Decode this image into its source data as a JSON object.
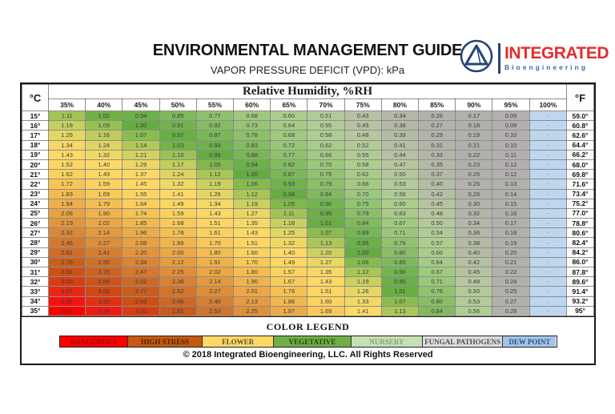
{
  "header": {
    "title": "ENVIRONMENTAL MANAGEMENT GUIDE",
    "subtitle": "VAPOR PRESSURE DEFICIT (VPD): kPa",
    "logo": {
      "name": "INTEGRATED",
      "sub": "Bioengineering",
      "name_color": "#E22D2D",
      "sub_color": "#3A67AE",
      "mark_color": "#24427B"
    }
  },
  "chart_data": {
    "type": "heatmap",
    "title": "Relative Humidity, %RH",
    "unit_left": "°C",
    "unit_right": "°F",
    "x_categories": [
      "35%",
      "40%",
      "45%",
      "50%",
      "55%",
      "60%",
      "65%",
      "70%",
      "75%",
      "80%",
      "85%",
      "90%",
      "95%",
      "100%"
    ],
    "dew_point_placeholder": "-",
    "dew_point_color": "#BDD7EE",
    "dew_point_text_color": "#6C87A8",
    "rows": [
      {
        "c": "15°",
        "f": "59.0°",
        "values": [
          "1.11",
          "1.02",
          "0.94",
          "0.85",
          "0.77",
          "0.68",
          "0.60",
          "0.51",
          "0.43",
          "0.34",
          "0.26",
          "0.17",
          "0.09"
        ]
      },
      {
        "c": "16°",
        "f": "60.8°",
        "values": [
          "1.18",
          "1.09",
          "1.00",
          "0.91",
          "0.82",
          "0.73",
          "0.64",
          "0.55",
          "0.45",
          "0.36",
          "0.27",
          "0.18",
          "0.09"
        ]
      },
      {
        "c": "17°",
        "f": "62.6°",
        "values": [
          "1.26",
          "1.16",
          "1.07",
          "0.97",
          "0.87",
          "0.78",
          "0.68",
          "0.58",
          "0.48",
          "0.39",
          "0.29",
          "0.19",
          "0.10"
        ]
      },
      {
        "c": "18°",
        "f": "64.4°",
        "values": [
          "1.34",
          "1.24",
          "1.14",
          "1.03",
          "0.93",
          "0.83",
          "0.72",
          "0.62",
          "0.52",
          "0.41",
          "0.31",
          "0.21",
          "0.10"
        ]
      },
      {
        "c": "19°",
        "f": "66.2°",
        "values": [
          "1.43",
          "1.32",
          "1.21",
          "1.10",
          "0.99",
          "0.88",
          "0.77",
          "0.66",
          "0.55",
          "0.44",
          "0.33",
          "0.22",
          "0.11"
        ]
      },
      {
        "c": "20°",
        "f": "68.0°",
        "values": [
          "1.52",
          "1.40",
          "1.29",
          "1.17",
          "1.05",
          "0.94",
          "0.82",
          "0.70",
          "0.58",
          "0.47",
          "0.35",
          "0.23",
          "0.12"
        ]
      },
      {
        "c": "21°",
        "f": "69.8°",
        "values": [
          "1.62",
          "1.49",
          "1.37",
          "1.24",
          "1.12",
          "1.00",
          "0.87",
          "0.75",
          "0.62",
          "0.50",
          "0.37",
          "0.25",
          "0.12"
        ]
      },
      {
        "c": "22°",
        "f": "71.6°",
        "values": [
          "1.72",
          "1.59",
          "1.45",
          "1.32",
          "1.19",
          "1.06",
          "0.93",
          "0.79",
          "0.66",
          "0.53",
          "0.40",
          "0.26",
          "0.13"
        ]
      },
      {
        "c": "23°",
        "f": "73.4°",
        "values": [
          "1.83",
          "1.69",
          "1.55",
          "1.41",
          "1.26",
          "1.12",
          "0.98",
          "0.84",
          "0.70",
          "0.56",
          "0.42",
          "0.28",
          "0.14"
        ]
      },
      {
        "c": "24°",
        "f": "75.2°",
        "values": [
          "1.94",
          "1.79",
          "1.64",
          "1.49",
          "1.34",
          "1.19",
          "1.05",
          "0.90",
          "0.75",
          "0.60",
          "0.45",
          "0.30",
          "0.15"
        ]
      },
      {
        "c": "25°",
        "f": "77.0°",
        "values": [
          "2.06",
          "1.90",
          "1.74",
          "1.59",
          "1.43",
          "1.27",
          "1.11",
          "0.95",
          "0.79",
          "0.63",
          "0.48",
          "0.32",
          "0.16"
        ]
      },
      {
        "c": "26°",
        "f": "78.8°",
        "values": [
          "2.19",
          "2.02",
          "1.85",
          "1.68",
          "1.51",
          "1.35",
          "1.18",
          "1.01",
          "0.84",
          "0.67",
          "0.50",
          "0.34",
          "0.17"
        ]
      },
      {
        "c": "27°",
        "f": "80.6°",
        "values": [
          "2.32",
          "2.14",
          "1.96",
          "1.78",
          "1.61",
          "1.43",
          "1.25",
          "1.07",
          "0.89",
          "0.71",
          "0.54",
          "0.36",
          "0.18"
        ]
      },
      {
        "c": "28°",
        "f": "82.4°",
        "values": [
          "2.46",
          "2.27",
          "2.08",
          "1.89",
          "1.70",
          "1.51",
          "1.32",
          "1.13",
          "0.95",
          "0.76",
          "0.57",
          "0.38",
          "0.19"
        ]
      },
      {
        "c": "29°",
        "f": "84.2°",
        "values": [
          "2.61",
          "2.41",
          "2.20",
          "2.00",
          "1.80",
          "1.60",
          "1.40",
          "1.20",
          "1.00",
          "0.80",
          "0.60",
          "0.40",
          "0.20"
        ]
      },
      {
        "c": "30°",
        "f": "86.0°",
        "values": [
          "2.76",
          "2.55",
          "2.34",
          "2.12",
          "1.91",
          "1.70",
          "1.49",
          "1.27",
          "1.06",
          "0.85",
          "0.64",
          "0.42",
          "0.21"
        ]
      },
      {
        "c": "31°",
        "f": "87.8°",
        "values": [
          "2.92",
          "2.70",
          "2.47",
          "2.25",
          "2.02",
          "1.80",
          "1.57",
          "1.35",
          "1.12",
          "0.90",
          "0.67",
          "0.45",
          "0.22"
        ]
      },
      {
        "c": "32°",
        "f": "89.6°",
        "values": [
          "3.09",
          "2.86",
          "2.62",
          "2.38",
          "2.14",
          "1.90",
          "1.67",
          "1.43",
          "1.19",
          "0.95",
          "0.71",
          "0.48",
          "0.24"
        ]
      },
      {
        "c": "33°",
        "f": "91.4°",
        "values": [
          "3.27",
          "3.02",
          "2.77",
          "2.52",
          "2.27",
          "2.01",
          "1.76",
          "1.51",
          "1.26",
          "1.01",
          "0.76",
          "0.50",
          "0.25"
        ]
      },
      {
        "c": "34°",
        "f": "93.2°",
        "values": [
          "3.46",
          "3.20",
          "2.93",
          "2.66",
          "2.40",
          "2.13",
          "1.86",
          "1.60",
          "1.33",
          "1.07",
          "0.80",
          "0.53",
          "0.27"
        ]
      },
      {
        "c": "35°",
        "f": "95°",
        "values": [
          "3.66",
          "3.38",
          "3.10",
          "2.81",
          "2.53",
          "2.25",
          "1.97",
          "1.69",
          "1.41",
          "1.13",
          "0.84",
          "0.56",
          "0.28"
        ]
      }
    ],
    "color_scale": [
      [
        0.0,
        "#B3AFAF"
      ],
      [
        0.25,
        "#B2B0AC"
      ],
      [
        0.38,
        "#B4BAA6"
      ],
      [
        0.48,
        "#B6C79E"
      ],
      [
        0.58,
        "#ADCE90"
      ],
      [
        0.7,
        "#9CC87C"
      ],
      [
        0.82,
        "#85BC62"
      ],
      [
        0.92,
        "#6FB34C"
      ],
      [
        1.0,
        "#63AC41"
      ],
      [
        1.08,
        "#90BF51"
      ],
      [
        1.17,
        "#C3CE5D"
      ],
      [
        1.27,
        "#E9D765"
      ],
      [
        1.4,
        "#FFD966"
      ],
      [
        1.6,
        "#FBD25F"
      ],
      [
        1.8,
        "#F4BD51"
      ],
      [
        2.0,
        "#ECA846"
      ],
      [
        2.2,
        "#E2943C"
      ],
      [
        2.4,
        "#D77F32"
      ],
      [
        2.6,
        "#CE6C28"
      ],
      [
        2.8,
        "#C85C1C"
      ],
      [
        3.0,
        "#CF4A12"
      ],
      [
        3.15,
        "#DC3810"
      ],
      [
        3.3,
        "#EA2414"
      ],
      [
        3.45,
        "#F81111"
      ],
      [
        3.66,
        "#FF0000"
      ]
    ]
  },
  "legend": {
    "title": "COLOR LEGEND",
    "items": [
      {
        "label": "DANGEROUS",
        "color": "#FF0000",
        "text_color": "#8F1010"
      },
      {
        "label": "HIGH STRESS",
        "color": "#C55A11",
        "text_color": "#472508"
      },
      {
        "label": "FLOWER",
        "color": "#FFD966",
        "text_color": "#5C5130"
      },
      {
        "label": "VEGETATIVE",
        "color": "#6FAE46",
        "text_color": "#1E4715"
      },
      {
        "label": "NURSERY",
        "color": "#C6E0B4",
        "text_color": "#85A274"
      },
      {
        "label": "FUNGAL PATHOGENS",
        "color": "#DEDEDE",
        "text_color": "#4F4F4F"
      },
      {
        "label": "DEW POINT",
        "color": "#A3C4E8",
        "text_color": "#2C5485"
      }
    ]
  },
  "footer": {
    "copyright": "© 2018 Integrated Bioengineering, LLC. All Rights Reserved"
  }
}
